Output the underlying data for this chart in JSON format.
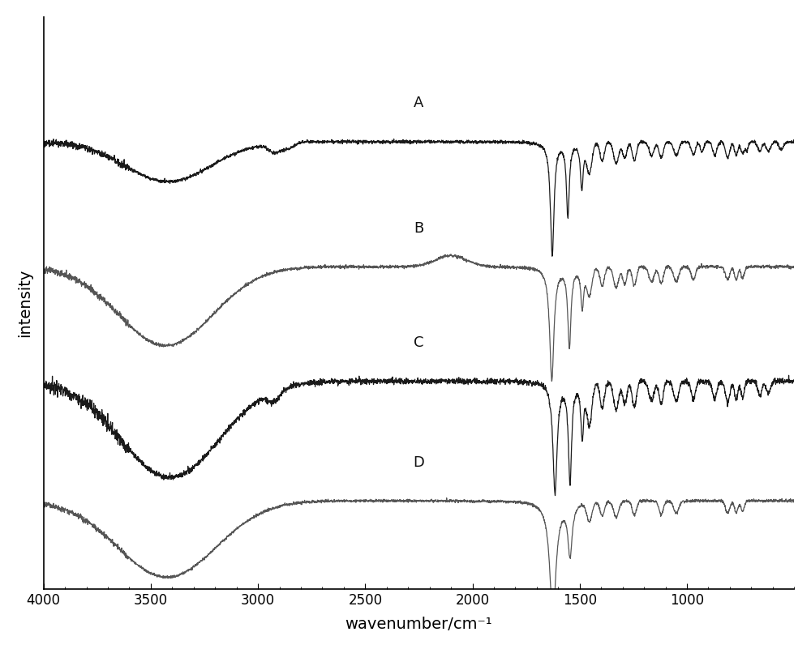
{
  "title": "",
  "xlabel": "wavenumber/cm⁻¹",
  "ylabel": "intensity",
  "xlim": [
    4000,
    500
  ],
  "xticks": [
    4000,
    3500,
    3000,
    2500,
    2000,
    1500,
    1000
  ],
  "background_color": "#ffffff",
  "spectra_labels": [
    "A",
    "B",
    "C",
    "D"
  ],
  "colors_black": "#1a1a1a",
  "colors_gray": "#555555",
  "figsize": [
    10.0,
    8.01
  ],
  "dpi": 100
}
